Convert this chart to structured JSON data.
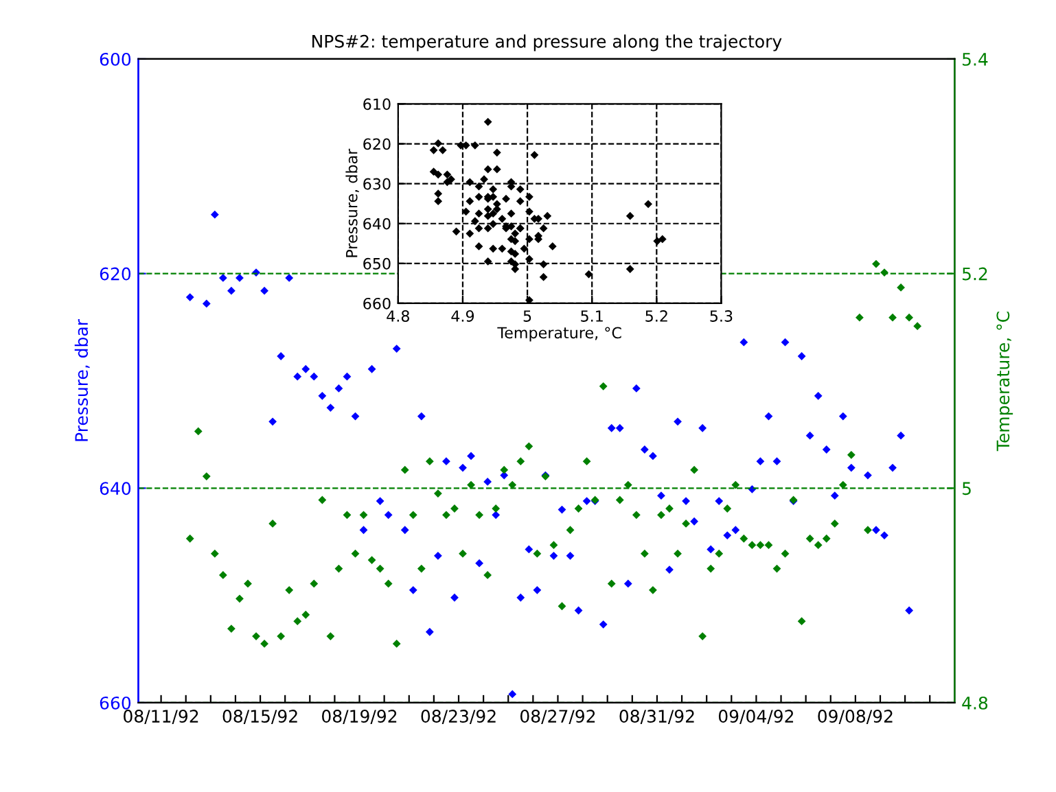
{
  "chart_data": [
    {
      "type": "scatter",
      "title": "NPS#2: temperature and pressure along the trajectory",
      "ylabel": "Pressure, dbar",
      "y2label": "Temperature, °C",
      "x": [
        "1992-08-12T04:00",
        "1992-08-12T12:00",
        "1992-08-12T20:00",
        "1992-08-13T04:00",
        "1992-08-13T12:00",
        "1992-08-13T20:00",
        "1992-08-14T04:00",
        "1992-08-14T12:00",
        "1992-08-14T20:00",
        "1992-08-15T04:00",
        "1992-08-15T12:00",
        "1992-08-15T20:00",
        "1992-08-16T04:00",
        "1992-08-16T12:00",
        "1992-08-16T20:00",
        "1992-08-17T04:00",
        "1992-08-17T12:00",
        "1992-08-17T20:00",
        "1992-08-18T04:00",
        "1992-08-18T12:00",
        "1992-08-18T20:00",
        "1992-08-19T04:00",
        "1992-08-19T12:00",
        "1992-08-19T20:00",
        "1992-08-20T04:00",
        "1992-08-20T12:00",
        "1992-08-20T20:00",
        "1992-08-21T04:00",
        "1992-08-21T12:00",
        "1992-08-21T20:00",
        "1992-08-22T04:00",
        "1992-08-22T12:00",
        "1992-08-22T20:00",
        "1992-08-23T04:00",
        "1992-08-23T12:00",
        "1992-08-23T20:00",
        "1992-08-24T04:00",
        "1992-08-24T12:00",
        "1992-08-24T20:00",
        "1992-08-25T04:00",
        "1992-08-25T12:00",
        "1992-08-25T20:00",
        "1992-08-26T04:00",
        "1992-08-26T12:00",
        "1992-08-26T20:00",
        "1992-08-27T04:00",
        "1992-08-27T12:00",
        "1992-08-27T20:00",
        "1992-08-28T04:00",
        "1992-08-28T12:00",
        "1992-08-28T20:00",
        "1992-08-29T04:00",
        "1992-08-29T12:00",
        "1992-08-29T20:00",
        "1992-08-30T04:00",
        "1992-08-30T12:00",
        "1992-08-30T20:00",
        "1992-08-31T04:00",
        "1992-08-31T12:00",
        "1992-08-31T20:00",
        "1992-09-01T04:00",
        "1992-09-01T12:00",
        "1992-09-01T20:00",
        "1992-09-02T04:00",
        "1992-09-02T12:00",
        "1992-09-02T20:00",
        "1992-09-03T04:00",
        "1992-09-03T12:00",
        "1992-09-03T20:00",
        "1992-09-04T04:00",
        "1992-09-04T12:00",
        "1992-09-04T20:00",
        "1992-09-05T04:00",
        "1992-09-05T12:00",
        "1992-09-05T20:00",
        "1992-09-06T04:00",
        "1992-09-06T12:00",
        "1992-09-06T20:00",
        "1992-09-07T04:00",
        "1992-09-07T12:00",
        "1992-09-07T20:00",
        "1992-09-08T04:00",
        "1992-09-08T12:00",
        "1992-09-08T20:00",
        "1992-09-09T04:00",
        "1992-09-09T12:00",
        "1992-09-09T20:00",
        "1992-09-10T04:00",
        "1992-09-10T12:00"
      ],
      "series": [
        {
          "color": "#0000ff",
          "axis": "y",
          "values": [
            622.2,
            null,
            622.8,
            614.5,
            620.4,
            621.6,
            620.4,
            null,
            619.9,
            621.6,
            633.8,
            627.7,
            620.4,
            629.6,
            628.9,
            629.6,
            631.4,
            632.5,
            630.7,
            629.6,
            633.3,
            643.9,
            628.9,
            641.2,
            642.5,
            627.0,
            643.9,
            649.5,
            633.3,
            653.4,
            646.3,
            637.5,
            650.2,
            638.1,
            637.0,
            647.0,
            639.4,
            642.5,
            638.8,
            659.2,
            650.2,
            645.7,
            649.5,
            638.8,
            646.3,
            642.0,
            646.3,
            651.4,
            641.2,
            641.2,
            652.7,
            634.4,
            634.4,
            648.9,
            630.7,
            636.4,
            637.0,
            640.7,
            647.6,
            633.8,
            641.2,
            643.1,
            634.4,
            645.7,
            641.2,
            644.4,
            643.9,
            626.4,
            640.1,
            637.5,
            633.3,
            637.5,
            626.4,
            641.2,
            627.7,
            635.1,
            631.4,
            636.4,
            640.7,
            633.3,
            638.1,
            null,
            638.8,
            643.9,
            644.4,
            638.1,
            635.1,
            651.4,
            null
          ]
        },
        {
          "color": "#008000",
          "axis": "y2",
          "values": [
            4.953,
            5.053,
            5.011,
            4.939,
            4.919,
            4.869,
            4.897,
            4.911,
            4.862,
            4.855,
            4.967,
            4.862,
            4.905,
            4.876,
            4.882,
            4.911,
            4.989,
            4.862,
            4.925,
            4.975,
            4.939,
            4.975,
            4.933,
            4.925,
            4.911,
            4.855,
            5.017,
            4.975,
            4.925,
            5.025,
            4.995,
            4.975,
            4.981,
            4.939,
            5.003,
            4.975,
            4.919,
            4.981,
            5.017,
            5.003,
            5.025,
            5.039,
            4.939,
            5.011,
            4.947,
            4.89,
            4.961,
            4.981,
            5.025,
            4.989,
            5.095,
            4.911,
            4.989,
            5.003,
            4.975,
            4.939,
            4.905,
            4.975,
            4.981,
            4.939,
            4.967,
            5.017,
            4.862,
            4.925,
            4.939,
            4.981,
            5.003,
            4.953,
            4.947,
            4.947,
            4.947,
            4.925,
            4.939,
            4.989,
            4.876,
            4.953,
            4.947,
            4.953,
            4.967,
            5.003,
            5.031,
            5.159,
            4.961,
            5.209,
            5.201,
            5.159,
            5.187,
            5.159,
            5.151
          ]
        }
      ],
      "xlim": [
        "1992-08-10T02:00",
        "1992-09-12"
      ],
      "xticks": [
        {
          "value": "1992-08-11",
          "label": "08/11/92"
        },
        {
          "value": "1992-08-12",
          "label": null
        },
        {
          "value": "1992-08-13",
          "label": null
        },
        {
          "value": "1992-08-14",
          "label": null
        },
        {
          "value": "1992-08-15",
          "label": "08/15/92"
        },
        {
          "value": "1992-08-16",
          "label": null
        },
        {
          "value": "1992-08-17",
          "label": null
        },
        {
          "value": "1992-08-18",
          "label": null
        },
        {
          "value": "1992-08-19",
          "label": "08/19/92"
        },
        {
          "value": "1992-08-20",
          "label": null
        },
        {
          "value": "1992-08-21",
          "label": null
        },
        {
          "value": "1992-08-22",
          "label": null
        },
        {
          "value": "1992-08-23",
          "label": "08/23/92"
        },
        {
          "value": "1992-08-24",
          "label": null
        },
        {
          "value": "1992-08-25",
          "label": null
        },
        {
          "value": "1992-08-26",
          "label": null
        },
        {
          "value": "1992-08-27",
          "label": "08/27/92"
        },
        {
          "value": "1992-08-28",
          "label": null
        },
        {
          "value": "1992-08-29",
          "label": null
        },
        {
          "value": "1992-08-30",
          "label": null
        },
        {
          "value": "1992-08-31",
          "label": "08/31/92"
        },
        {
          "value": "1992-09-01",
          "label": null
        },
        {
          "value": "1992-09-02",
          "label": null
        },
        {
          "value": "1992-09-03",
          "label": null
        },
        {
          "value": "1992-09-04",
          "label": "09/04/92"
        },
        {
          "value": "1992-09-05",
          "label": null
        },
        {
          "value": "1992-09-06",
          "label": null
        },
        {
          "value": "1992-09-07",
          "label": null
        },
        {
          "value": "1992-09-08",
          "label": "09/08/92"
        },
        {
          "value": "1992-09-09",
          "label": null
        },
        {
          "value": "1992-09-10",
          "label": null
        },
        {
          "value": "1992-09-11",
          "label": null
        }
      ],
      "ylim": [
        660,
        600
      ],
      "yticks": [
        600,
        620,
        640,
        660
      ],
      "y2lim": [
        4.8,
        5.4
      ],
      "y2ticks": [
        4.8,
        5,
        5.2,
        5.4
      ],
      "grid": "y",
      "marker": "diamond"
    },
    {
      "type": "scatter",
      "xlabel": "Temperature, °C",
      "ylabel": "Pressure, dbar",
      "x": [
        4.953,
        5.011,
        4.939,
        4.919,
        4.869,
        4.897,
        4.862,
        4.855,
        4.967,
        4.862,
        4.905,
        4.876,
        4.882,
        4.911,
        4.989,
        4.862,
        4.925,
        4.975,
        4.939,
        4.975,
        4.933,
        4.925,
        4.911,
        4.855,
        5.017,
        4.975,
        4.925,
        5.025,
        4.995,
        4.975,
        4.981,
        4.939,
        5.003,
        4.975,
        4.919,
        4.981,
        5.017,
        5.003,
        5.025,
        5.039,
        4.939,
        5.011,
        4.947,
        4.89,
        4.961,
        4.981,
        5.025,
        4.989,
        5.095,
        4.911,
        4.989,
        5.003,
        4.975,
        4.939,
        4.905,
        4.975,
        4.981,
        4.939,
        4.967,
        5.017,
        4.862,
        4.925,
        4.939,
        4.981,
        5.003,
        4.953,
        4.947,
        4.947,
        4.947,
        4.925,
        4.939,
        4.989,
        4.876,
        4.953,
        4.947,
        4.953,
        4.967,
        5.003,
        5.031,
        4.961,
        5.209,
        5.201,
        5.159,
        5.187,
        5.159
      ],
      "series": [
        {
          "color": "#000000",
          "values": [
            622.2,
            622.8,
            614.5,
            620.4,
            621.6,
            620.4,
            619.9,
            621.6,
            633.8,
            627.7,
            620.4,
            629.6,
            628.9,
            629.6,
            631.4,
            632.5,
            630.7,
            629.6,
            633.3,
            643.9,
            628.9,
            641.2,
            642.5,
            627.0,
            643.9,
            649.5,
            633.3,
            653.4,
            646.3,
            637.5,
            650.2,
            638.1,
            637.0,
            647.0,
            639.4,
            642.5,
            638.8,
            659.2,
            650.2,
            645.7,
            649.5,
            638.8,
            646.3,
            642.0,
            646.3,
            651.4,
            641.2,
            641.2,
            652.7,
            634.4,
            634.4,
            648.9,
            630.7,
            636.4,
            637.0,
            640.7,
            647.6,
            633.8,
            641.2,
            643.1,
            634.4,
            645.7,
            641.2,
            644.4,
            643.9,
            626.4,
            640.1,
            637.5,
            633.3,
            637.5,
            626.4,
            641.2,
            627.7,
            635.1,
            631.4,
            636.4,
            640.7,
            633.3,
            638.1,
            638.8,
            643.9,
            644.4,
            638.1,
            635.1,
            651.4
          ]
        }
      ],
      "xlim": [
        4.8,
        5.3
      ],
      "xticks": [
        4.8,
        4.9,
        5,
        5.1,
        5.2,
        5.3
      ],
      "ylim": [
        660,
        610
      ],
      "yticks": [
        610,
        620,
        630,
        640,
        650,
        660
      ],
      "grid": true,
      "marker": "diamond"
    }
  ]
}
